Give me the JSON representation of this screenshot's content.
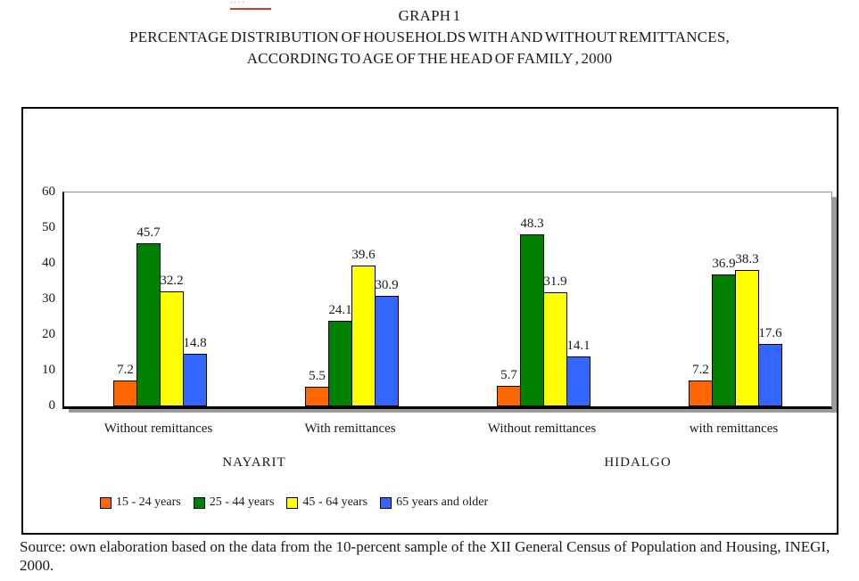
{
  "artifact": {
    "text": "····"
  },
  "title": {
    "line1": "GRAPH 1",
    "line2": "PERCENTAGE DISTRIBUTION OF HOUSEHOLDS WITH AND WITHOUT REMITTANCES,",
    "line3": "ACCORDING TO AGE OF THE HEAD OF FAMILY , 2000"
  },
  "source": {
    "text": "Source: own elaboration based on the data from the 10-percent sample of the XII General Census of Population and Housing, INEGI, 2000."
  },
  "chart_data": {
    "type": "bar",
    "title": "GRAPH 1",
    "subtitle": "PERCENTAGE DISTRIBUTION OF HOUSEHOLDS WITH AND WITHOUT REMITTANCES, ACCORDING TO AGE OF THE HEAD OF FAMILY , 2000",
    "ylim": [
      0,
      60
    ],
    "yticks": [
      60,
      50,
      40,
      30,
      20,
      10,
      0
    ],
    "grid": false,
    "legend_position": "bottom-left",
    "categories": [
      "Without remittances",
      "With remittances",
      "Without remittances",
      "with remittances"
    ],
    "states": [
      "NAYARIT",
      "HIDALGO"
    ],
    "category_state_map": [
      "NAYARIT",
      "NAYARIT",
      "HIDALGO",
      "HIDALGO"
    ],
    "series": [
      {
        "name": "15 - 24 years",
        "color": "#FF6600",
        "values": [
          7.2,
          5.5,
          5.7,
          7.2
        ]
      },
      {
        "name": "25 - 44 years",
        "color": "#008000",
        "values": [
          45.7,
          24.1,
          48.3,
          36.9
        ]
      },
      {
        "name": "45 - 64 years",
        "color": "#FFFF00",
        "values": [
          32.2,
          39.6,
          31.9,
          38.3
        ]
      },
      {
        "name": "65 years and older",
        "color": "#3366FF",
        "values": [
          14.8,
          30.9,
          14.1,
          17.6
        ]
      }
    ]
  }
}
